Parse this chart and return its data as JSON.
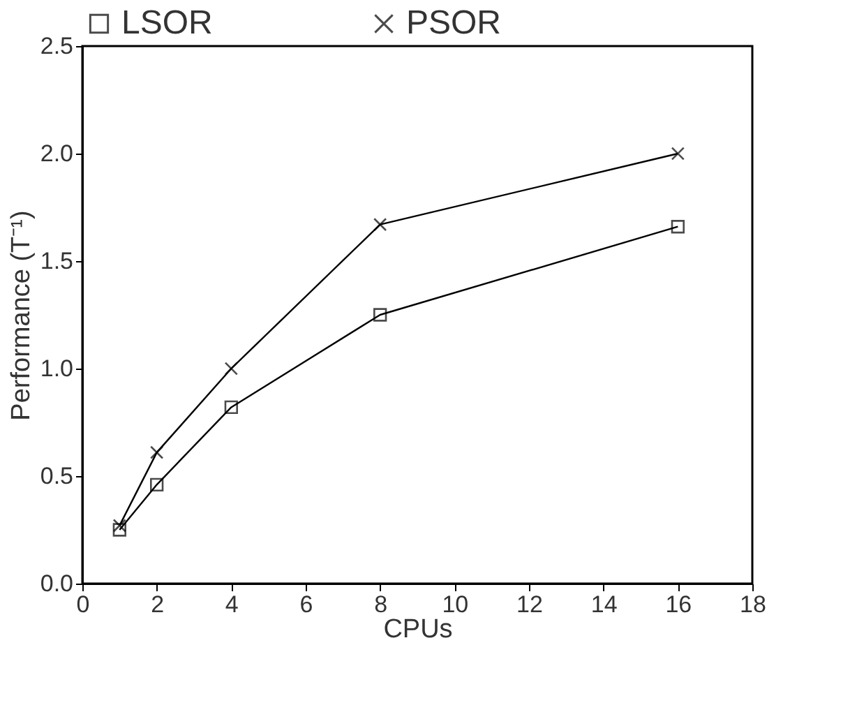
{
  "chart_data": {
    "type": "line",
    "xlabel": "CPUs",
    "ylabel": "Performance (T⁻¹)",
    "xlim": [
      0,
      18
    ],
    "xticks": [
      0,
      2,
      4,
      6,
      8,
      10,
      12,
      14,
      16,
      18
    ],
    "ylim": [
      0,
      2.5
    ],
    "yticks": [
      {
        "value": 0,
        "label": "0.0"
      },
      0.5,
      {
        "value": 1,
        "label": "1.0"
      },
      1.5,
      {
        "value": 2,
        "label": "2.0"
      },
      2.5
    ],
    "x": [
      1,
      2,
      4,
      8,
      16
    ],
    "series": [
      {
        "name": "LSOR",
        "color": "#000000",
        "marker": "square",
        "values": [
          0.25,
          0.46,
          0.82,
          1.25,
          1.66
        ]
      },
      {
        "name": "PSOR",
        "color": "#000000",
        "marker": "cross",
        "values": [
          0.27,
          0.61,
          1.0,
          1.67,
          2.0
        ]
      }
    ],
    "legend": "top",
    "grid": false,
    "line_style": "solid"
  }
}
